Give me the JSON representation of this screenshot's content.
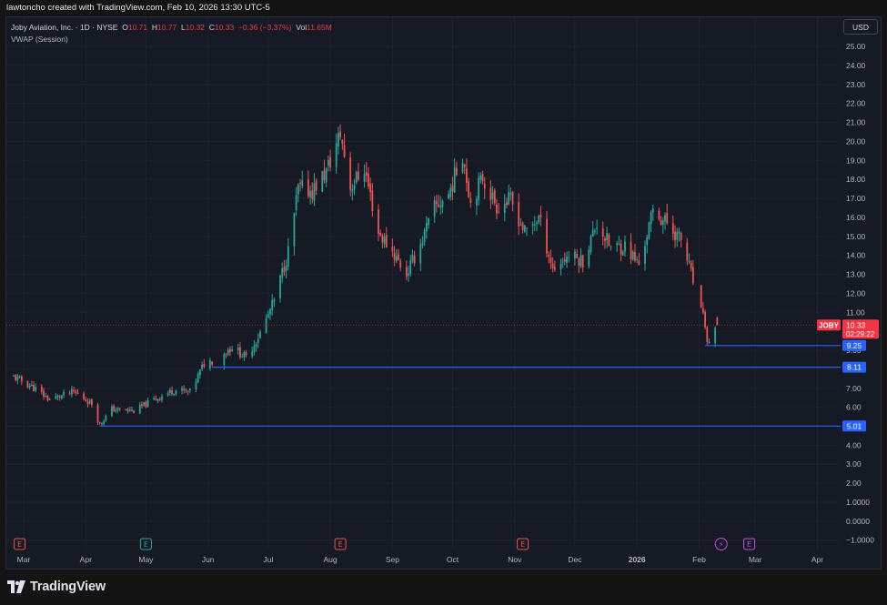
{
  "caption": "lawtoncho created with TradingView.com, Feb 10, 2026 13:30 UTC-5",
  "legend": {
    "symbol": "Joby Aviation, Inc. · 1D · NYSE",
    "o_label": "O",
    "o": "10.71",
    "h_label": "H",
    "h": "10.77",
    "l_label": "L",
    "l": "10.32",
    "c_label": "C",
    "c": "10.33",
    "change": "−0.36 (−3.37%)",
    "vol_label": "Vol",
    "vol": "11.65M",
    "indicator": "VWAP (Session)"
  },
  "currency": "USD",
  "brand": "TradingView",
  "colors": {
    "up": "#26a69a",
    "down": "#ef5350",
    "hline": "#2962ff",
    "last": "#f23645",
    "bg": "#161a25",
    "grid": "#1e222d"
  },
  "chart_data": {
    "type": "candlestick",
    "symbol": "JOBY",
    "interval": "1D",
    "ylim": [
      -1.3,
      26.2
    ],
    "y_ticks": [
      "−1.0000",
      "0.0000",
      "1.0000",
      "2.00",
      "3.00",
      "4.00",
      "5.00",
      "6.00",
      "7.00",
      "8.00",
      "9.00",
      "10.00",
      "11.00",
      "12.00",
      "13.00",
      "14.00",
      "15.00",
      "16.00",
      "17.00",
      "18.00",
      "19.00",
      "20.00",
      "21.00",
      "22.00",
      "23.00",
      "24.00",
      "25.00"
    ],
    "x_ticks": [
      "Mar",
      "Apr",
      "May",
      "Jun",
      "Jul",
      "Aug",
      "Sep",
      "Oct",
      "Nov",
      "Dec",
      "2026",
      "Feb",
      "Mar",
      "Apr"
    ],
    "bold_x_tick": "2026",
    "price_path": [
      [
        "2025-02-24",
        7.6
      ],
      [
        "2025-03-05",
        7.1
      ],
      [
        "2025-03-14",
        6.4
      ],
      [
        "2025-03-26",
        6.8
      ],
      [
        "2025-04-04",
        6.2
      ],
      [
        "2025-04-08",
        5.1
      ],
      [
        "2025-04-14",
        5.9
      ],
      [
        "2025-04-25",
        5.8
      ],
      [
        "2025-05-05",
        6.4
      ],
      [
        "2025-05-15",
        6.9
      ],
      [
        "2025-05-23",
        6.8
      ],
      [
        "2025-05-30",
        8.3
      ],
      [
        "2025-06-06",
        8.6
      ],
      [
        "2025-06-13",
        9.2
      ],
      [
        "2025-06-20",
        8.6
      ],
      [
        "2025-06-27",
        9.9
      ],
      [
        "2025-07-04",
        11.6
      ],
      [
        "2025-07-11",
        14.2
      ],
      [
        "2025-07-16",
        17.5
      ],
      [
        "2025-07-23",
        17.4
      ],
      [
        "2025-07-30",
        18.4
      ],
      [
        "2025-08-06",
        20.4
      ],
      [
        "2025-08-11",
        17.6
      ],
      [
        "2025-08-18",
        18.6
      ],
      [
        "2025-08-25",
        15.2
      ],
      [
        "2025-09-01",
        14.2
      ],
      [
        "2025-09-08",
        13.0
      ],
      [
        "2025-09-15",
        14.6
      ],
      [
        "2025-09-22",
        16.5
      ],
      [
        "2025-09-29",
        17.2
      ],
      [
        "2025-10-06",
        19.4
      ],
      [
        "2025-10-10",
        16.8
      ],
      [
        "2025-10-16",
        18.1
      ],
      [
        "2025-10-23",
        16.6
      ],
      [
        "2025-10-30",
        16.9
      ],
      [
        "2025-11-06",
        15.2
      ],
      [
        "2025-11-13",
        16.0
      ],
      [
        "2025-11-20",
        13.3
      ],
      [
        "2025-11-28",
        14.0
      ],
      [
        "2025-12-05",
        13.7
      ],
      [
        "2025-12-12",
        15.7
      ],
      [
        "2025-12-19",
        14.4
      ],
      [
        "2025-12-26",
        14.5
      ],
      [
        "2026-01-02",
        13.5
      ],
      [
        "2026-01-09",
        16.3
      ],
      [
        "2026-01-16",
        15.7
      ],
      [
        "2026-01-23",
        14.8
      ],
      [
        "2026-01-27",
        13.4
      ],
      [
        "2026-02-02",
        11.0
      ],
      [
        "2026-02-04",
        10.4
      ],
      [
        "2026-02-05",
        9.3
      ],
      [
        "2026-02-10",
        10.4
      ]
    ],
    "gaps": [
      [
        "2025-06-04",
        "2025-06-08"
      ],
      [
        "2026-01-30",
        "2026-02-01"
      ]
    ],
    "horizontal_lines": [
      {
        "label": "9.25",
        "value": 9.25,
        "from": "2026-02-04"
      },
      {
        "label": "8.11",
        "value": 8.11,
        "from": "2025-06-03"
      },
      {
        "label": "5.01",
        "value": 5.01,
        "from": "2025-04-08"
      }
    ],
    "last_price": {
      "symbol": "JOBY",
      "value": 10.33,
      "label": "10.33",
      "countdown": "02:29:22"
    },
    "event_markers": [
      {
        "date": "2025-02-27",
        "glyph": "E",
        "color": "#ef5350"
      },
      {
        "date": "2025-05-01",
        "glyph": "E",
        "color": "#26a69a"
      },
      {
        "date": "2025-08-06",
        "glyph": "E",
        "color": "#ef5350"
      },
      {
        "date": "2025-11-05",
        "glyph": "E",
        "color": "#ef5350"
      },
      {
        "date": "2026-02-12",
        "glyph": "⚡",
        "color": "#c54ce0"
      },
      {
        "date": "2026-02-26",
        "glyph": "E",
        "color": "#c54ce0"
      }
    ]
  }
}
